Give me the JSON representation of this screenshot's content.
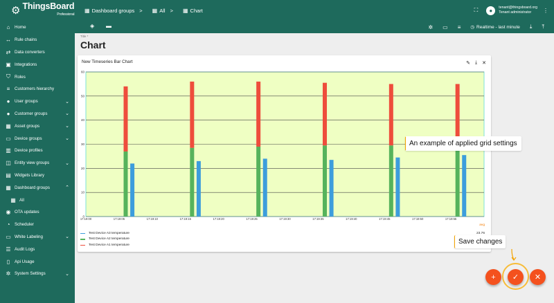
{
  "logo": {
    "name": "ThingsBoard",
    "edition": "Professional"
  },
  "sidebar": {
    "items": [
      {
        "label": "Home",
        "icon": "home-icon",
        "glyph": "⌂"
      },
      {
        "label": "Rule chains",
        "icon": "rule-chains-icon",
        "glyph": "↔"
      },
      {
        "label": "Data converters",
        "icon": "converter-icon",
        "glyph": "⇄"
      },
      {
        "label": "Integrations",
        "icon": "integrations-icon",
        "glyph": "▣"
      },
      {
        "label": "Roles",
        "icon": "shield-icon",
        "glyph": "⛉"
      },
      {
        "label": "Customers hierarchy",
        "icon": "hierarchy-icon",
        "glyph": "≡"
      },
      {
        "label": "User groups",
        "icon": "user-icon",
        "glyph": "●",
        "chevron": "⌄"
      },
      {
        "label": "Customer groups",
        "icon": "customers-icon",
        "glyph": "●",
        "chevron": "⌄"
      },
      {
        "label": "Asset groups",
        "icon": "asset-icon",
        "glyph": "▦",
        "chevron": "⌄"
      },
      {
        "label": "Device groups",
        "icon": "device-icon",
        "glyph": "▭",
        "chevron": "⌄"
      },
      {
        "label": "Device profiles",
        "icon": "device-profile-icon",
        "glyph": "▥"
      },
      {
        "label": "Entity view groups",
        "icon": "entity-view-icon",
        "glyph": "◫",
        "chevron": "⌄"
      },
      {
        "label": "Widgets Library",
        "icon": "widgets-icon",
        "glyph": "▤"
      },
      {
        "label": "Dashboard groups",
        "icon": "dashboard-icon",
        "glyph": "▦",
        "chevron": "⌃"
      },
      {
        "label": "All",
        "icon": "dashboard-all-icon",
        "glyph": "▦",
        "sub": true
      },
      {
        "label": "OTA updates",
        "icon": "ota-icon",
        "glyph": "◉"
      },
      {
        "label": "Scheduler",
        "icon": "scheduler-icon",
        "glyph": "◔"
      },
      {
        "label": "White Labeling",
        "icon": "white-labeling-icon",
        "glyph": "▭",
        "chevron": "⌄"
      },
      {
        "label": "Audit Logs",
        "icon": "audit-icon",
        "glyph": "☰"
      },
      {
        "label": "Api Usage",
        "icon": "api-usage-icon",
        "glyph": "▯"
      },
      {
        "label": "System Settings",
        "icon": "gear-icon",
        "glyph": "✲",
        "chevron": "⌄"
      }
    ]
  },
  "breadcrumb": [
    {
      "label": "Dashboard groups",
      "glyph": "▦"
    },
    {
      "label": "All",
      "glyph": "▦"
    },
    {
      "label": "Chart",
      "glyph": "▦"
    }
  ],
  "user": {
    "email": "tenant@thingsboard.org",
    "role": "Tenant administrator"
  },
  "toolbar": {
    "timewindow": "Realtime - last minute"
  },
  "title_field": {
    "label": "Title *",
    "value": "Chart"
  },
  "widget": {
    "title": "New Timeseries Bar Chart"
  },
  "chart_data": {
    "type": "bar",
    "title": "New Timeseries Bar Chart",
    "ylim": [
      0,
      60
    ],
    "yticks": [
      0,
      10,
      20,
      30,
      40,
      50,
      60
    ],
    "xlim": [
      "17:19:00",
      "17:20:00"
    ],
    "xticks": [
      "17:19:00",
      "17:19:05",
      "17:19:10",
      "17:19:15",
      "17:19:20",
      "17:19:25",
      "17:19:30",
      "17:19:35",
      "17:19:40",
      "17:19:45",
      "17:19:50",
      "17:19:55"
    ],
    "grid": true,
    "background_color": "#efffc3",
    "series": [
      {
        "name": "Test Device A3 temperature",
        "color": "#3d9ddc",
        "x": [
          "17:19:07",
          "17:19:17",
          "17:19:27",
          "17:19:37",
          "17:19:47",
          "17:19:57"
        ],
        "values": [
          22,
          23,
          24,
          23.5,
          24.5,
          25.5
        ]
      },
      {
        "name": "Test Device A2 temperature",
        "color": "#56b35c",
        "x": [
          "17:19:06",
          "17:19:16",
          "17:19:26",
          "17:19:36",
          "17:19:46",
          "17:19:56"
        ],
        "values": [
          27,
          28.5,
          29,
          29.5,
          29.5,
          28
        ]
      },
      {
        "name": "Test Device A1 temperature",
        "color": "#ee4d3c",
        "x": [
          "17:19:06",
          "17:19:16",
          "17:19:26",
          "17:19:36",
          "17:19:46",
          "17:19:56"
        ],
        "values": [
          54,
          56,
          56,
          55.5,
          55,
          55
        ]
      }
    ],
    "stacked_pairs": true,
    "legend": {
      "placement": "bottom-left",
      "value_header": "avg",
      "values": [
        "23.76",
        "",
        ""
      ]
    }
  },
  "callouts": {
    "grid": "An example of applied grid settings",
    "save": "Save changes"
  },
  "fabs": {
    "add": "+",
    "apply": "✓",
    "cancel": "✕"
  }
}
